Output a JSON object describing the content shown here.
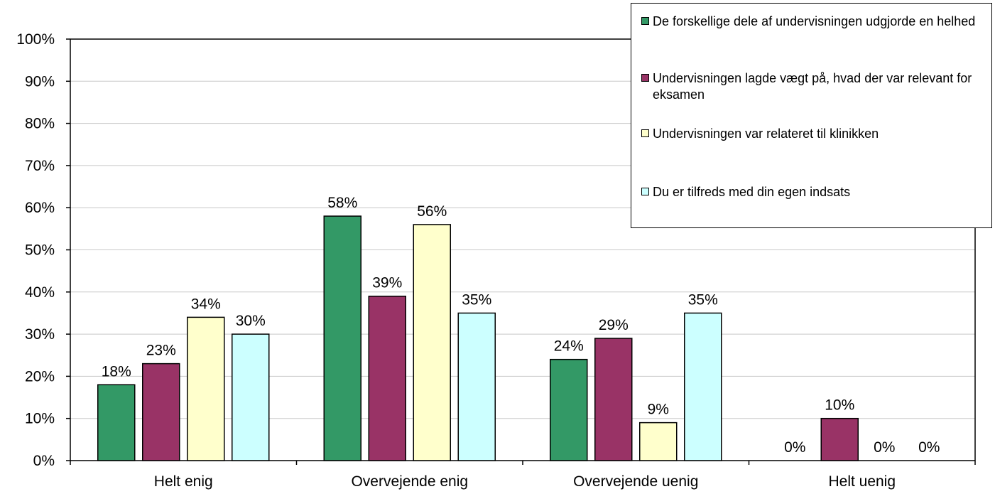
{
  "chart_data": {
    "type": "bar",
    "categories": [
      "Helt enig",
      "Overvejende enig",
      "Overvejende uenig",
      "Helt uenig"
    ],
    "series": [
      {
        "name": "De forskellige dele af undervisningen udgjorde en helhed",
        "color": "#339966",
        "values": [
          18,
          58,
          24,
          0
        ],
        "labels": [
          "18%",
          "58%",
          "24%",
          "0%"
        ]
      },
      {
        "name": "Undervisningen lagde vægt på, hvad der var relevant for eksamen",
        "color": "#993366",
        "values": [
          23,
          39,
          29,
          10
        ],
        "labels": [
          "23%",
          "39%",
          "29%",
          "10%"
        ]
      },
      {
        "name": "Undervisningen var relateret til klinikken",
        "color": "#ffffcc",
        "values": [
          34,
          56,
          9,
          0
        ],
        "labels": [
          "34%",
          "56%",
          "9%",
          "0%"
        ]
      },
      {
        "name": "Du er tilfreds med din egen indsats",
        "color": "#ccffff",
        "values": [
          30,
          35,
          35,
          0
        ],
        "labels": [
          "30%",
          "35%",
          "35%",
          "0%"
        ]
      }
    ],
    "y_ticks": [
      "0%",
      "10%",
      "20%",
      "30%",
      "40%",
      "50%",
      "60%",
      "70%",
      "80%",
      "90%",
      "100%"
    ],
    "ylim": [
      0,
      100
    ],
    "grid": true,
    "legend_position": "top-right"
  }
}
